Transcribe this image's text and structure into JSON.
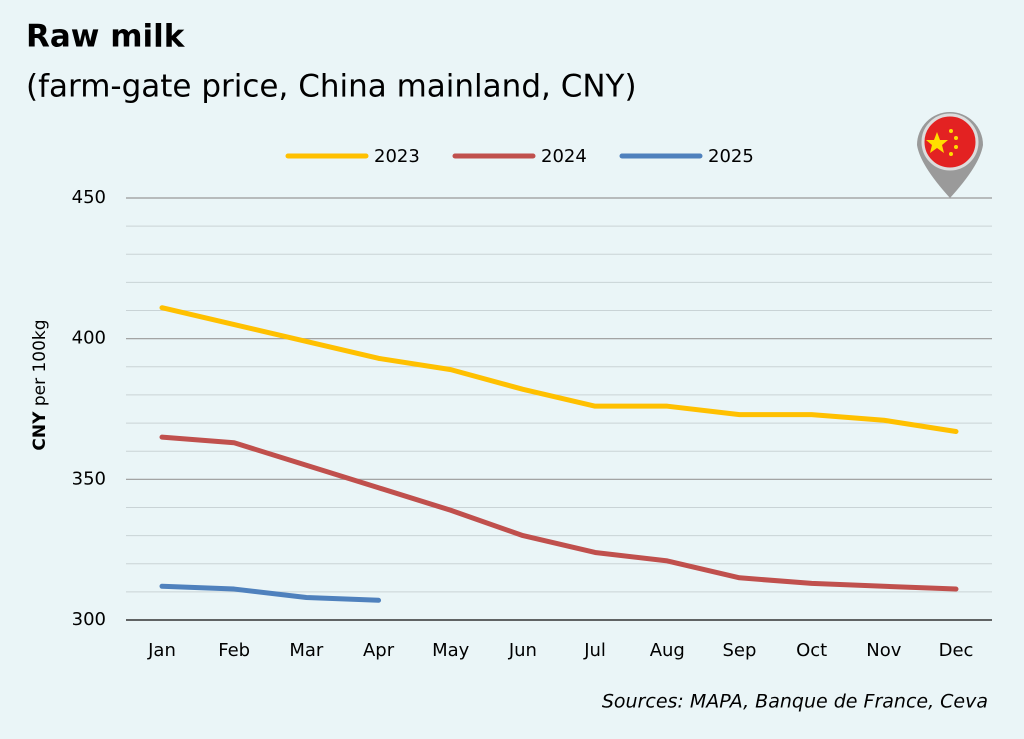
{
  "chart_data": {
    "type": "line",
    "title": "Raw milk",
    "subtitle": "(farm-gate price, China mainland, CNY)",
    "ylabel": {
      "unit": "CNY",
      "text": "per 100kg"
    },
    "source": "Sources: MAPA, Banque de France, Ceva",
    "categories": [
      "Jan",
      "Feb",
      "Mar",
      "Apr",
      "May",
      "Jun",
      "Jul",
      "Aug",
      "Sep",
      "Oct",
      "Nov",
      "Dec"
    ],
    "series": [
      {
        "name": "2023",
        "color": "#ffc000",
        "values": [
          411,
          405,
          399,
          393,
          389,
          382,
          376,
          376,
          373,
          373,
          371,
          367
        ]
      },
      {
        "name": "2024",
        "color": "#c0504d",
        "values": [
          365,
          363,
          355,
          347,
          339,
          330,
          324,
          321,
          315,
          313,
          312,
          311
        ]
      },
      {
        "name": "2025",
        "color": "#4f81bd",
        "values": [
          312,
          311,
          308,
          307,
          null,
          null,
          null,
          null,
          null,
          null,
          null,
          null
        ]
      }
    ],
    "ylim": [
      300,
      450
    ],
    "yticks": [
      300,
      350,
      400,
      450
    ],
    "yminor": [
      310,
      320,
      330,
      340,
      360,
      370,
      380,
      390,
      410,
      420,
      430,
      440
    ],
    "grid": true,
    "legend": "top"
  }
}
